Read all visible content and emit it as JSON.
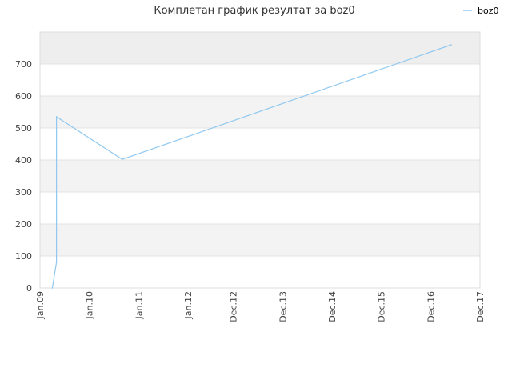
{
  "chart_data": {
    "type": "line",
    "title": "Комплетан график резултат за boz0",
    "xlabel": "",
    "ylabel": "",
    "legend": "top-right",
    "grid": true,
    "colors": {
      "line": "#90c8f0",
      "band_top": "#eeeeee",
      "band_light": "#f3f3f3",
      "band_white": "#ffffff",
      "border": "#dddddd"
    },
    "ylim": [
      0,
      800
    ],
    "y_ticks": [
      "0",
      "100",
      "200",
      "300",
      "400",
      "500",
      "600",
      "700"
    ],
    "x_axis": {
      "min": "2009-01",
      "max": "2017-12",
      "ticks": [
        {
          "label": "Jan.09",
          "date": "2009-01"
        },
        {
          "label": "Jan.10",
          "date": "2010-01"
        },
        {
          "label": "Jan.11",
          "date": "2011-01"
        },
        {
          "label": "Jan.12",
          "date": "2012-01"
        },
        {
          "label": "Dec.12",
          "date": "2012-12"
        },
        {
          "label": "Dec.13",
          "date": "2013-12"
        },
        {
          "label": "Dec.14",
          "date": "2014-12"
        },
        {
          "label": "Dec.15",
          "date": "2015-12"
        },
        {
          "label": "Dec.16",
          "date": "2016-12"
        },
        {
          "label": "Dec.17",
          "date": "2017-12"
        }
      ]
    },
    "series": [
      {
        "name": "boz0",
        "points": [
          {
            "x": "2009-04",
            "y": 0
          },
          {
            "x": "2009-05",
            "y": 80
          },
          {
            "x": "2009-05",
            "y": 535
          },
          {
            "x": "2010-09",
            "y": 402
          },
          {
            "x": "2017-05",
            "y": 760
          }
        ]
      }
    ]
  }
}
